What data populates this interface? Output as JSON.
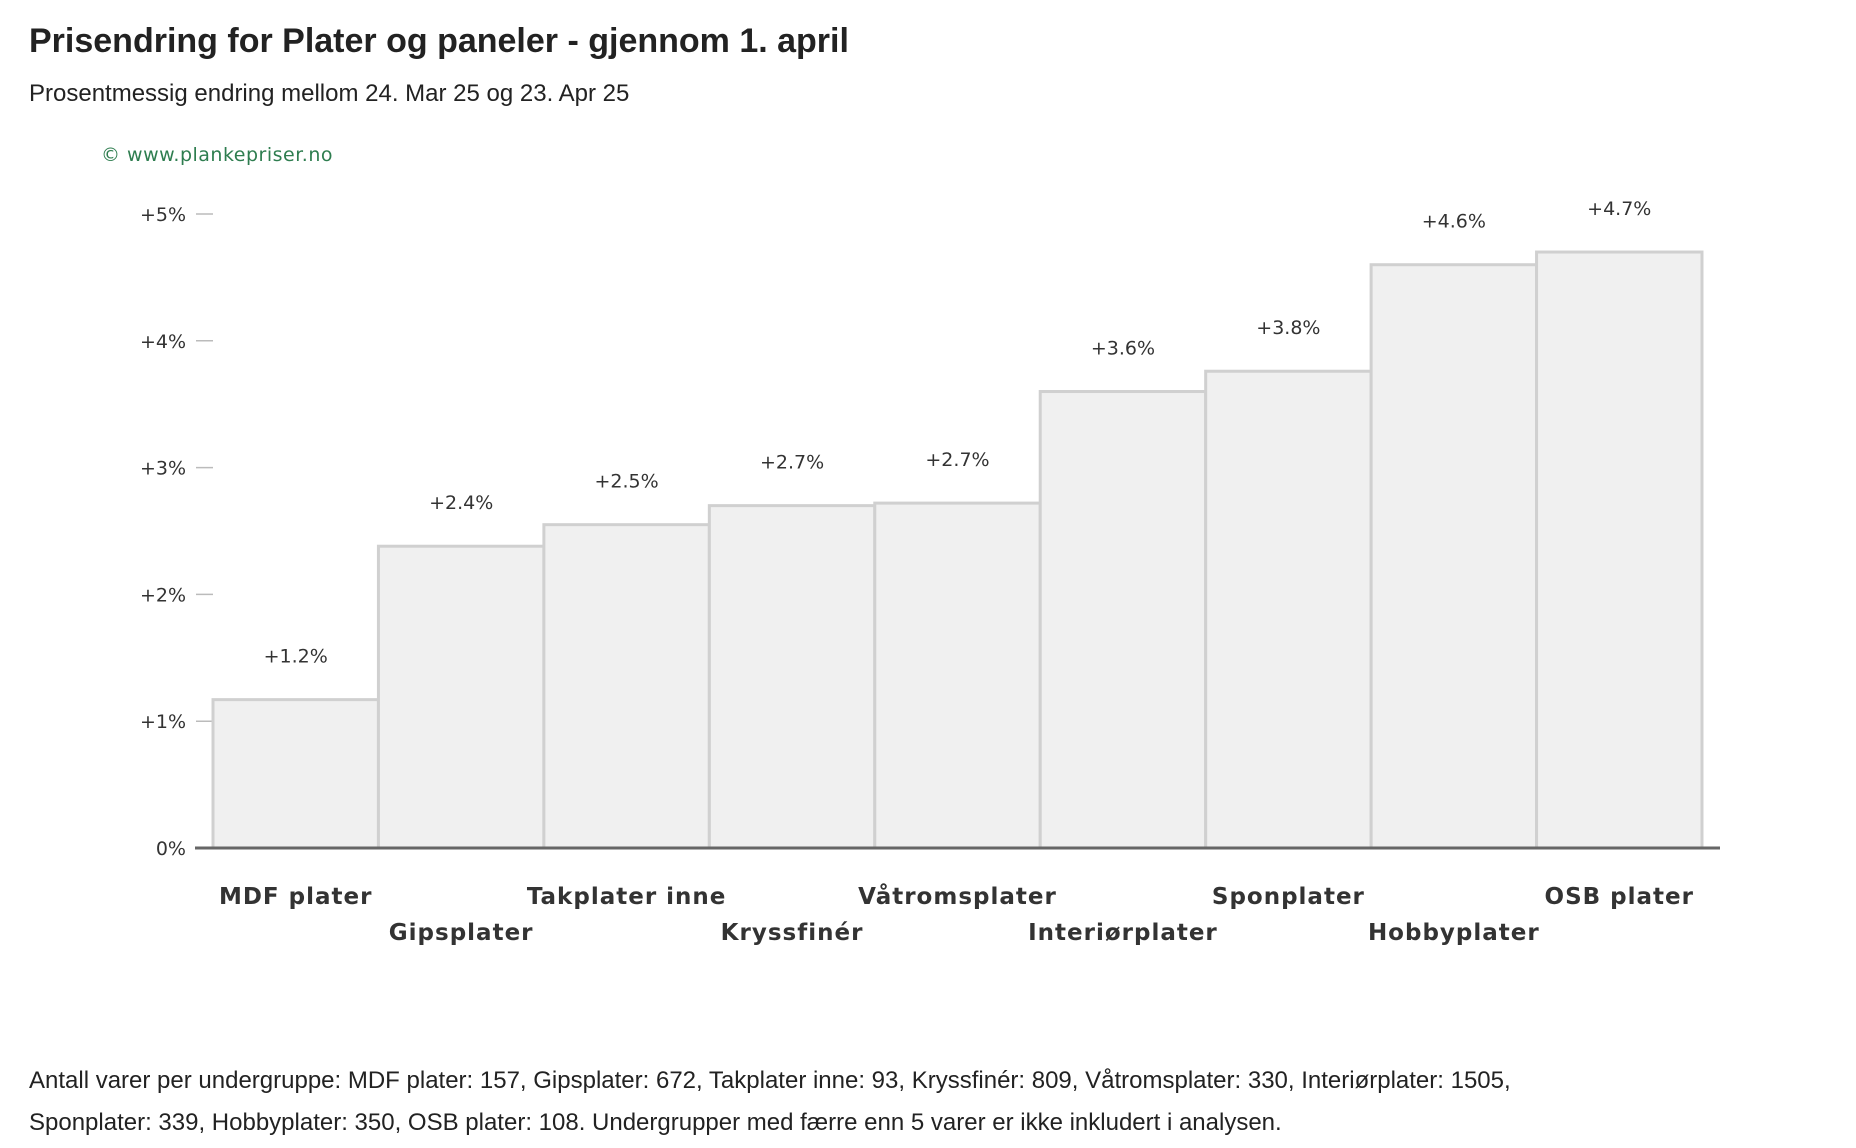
{
  "title": "Prisendring for Plater og paneler - gjennom 1. april",
  "subtitle": "Prosentmessig endring mellom 24. Mar 25 og 23. Apr 25",
  "credit": "© www.plankepriser.no",
  "footnote": "Antall varer per undergruppe: MDF plater: 157, Gipsplater: 672, Takplater inne: 93, Kryssfinér: 809, Våtromsplater: 330, Interiørplater: 1505, Sponplater: 339, Hobbyplater: 350, OSB plater: 108. Undergrupper med færre enn 5 varer er ikke inkludert i analysen.",
  "colors": {
    "bar_fill": "#f0f0f0",
    "bar_stroke": "#d0d0d0",
    "axis": "#666666",
    "tick": "#bbbbbb",
    "credit": "#2e7d4f"
  },
  "chart_data": {
    "type": "bar",
    "categories": [
      "MDF plater",
      "Gipsplater",
      "Takplater inne",
      "Kryssfinér",
      "Våtromsplater",
      "Interiørplater",
      "Sponplater",
      "Hobbyplater",
      "OSB plater"
    ],
    "values": [
      1.17,
      2.38,
      2.55,
      2.7,
      2.72,
      3.6,
      3.76,
      4.6,
      4.7
    ],
    "value_labels": [
      "+1.2%",
      "+2.4%",
      "+2.5%",
      "+2.7%",
      "+2.7%",
      "+3.6%",
      "+3.8%",
      "+4.6%",
      "+4.7%"
    ],
    "y_ticks": [
      0,
      1,
      2,
      3,
      4,
      5
    ],
    "y_tick_labels": [
      "0%",
      "+1%",
      "+2%",
      "+3%",
      "+4%",
      "+5%"
    ],
    "ylim": [
      0,
      5
    ],
    "xlabel": "",
    "ylabel": "",
    "grid": false,
    "legend": "none"
  }
}
